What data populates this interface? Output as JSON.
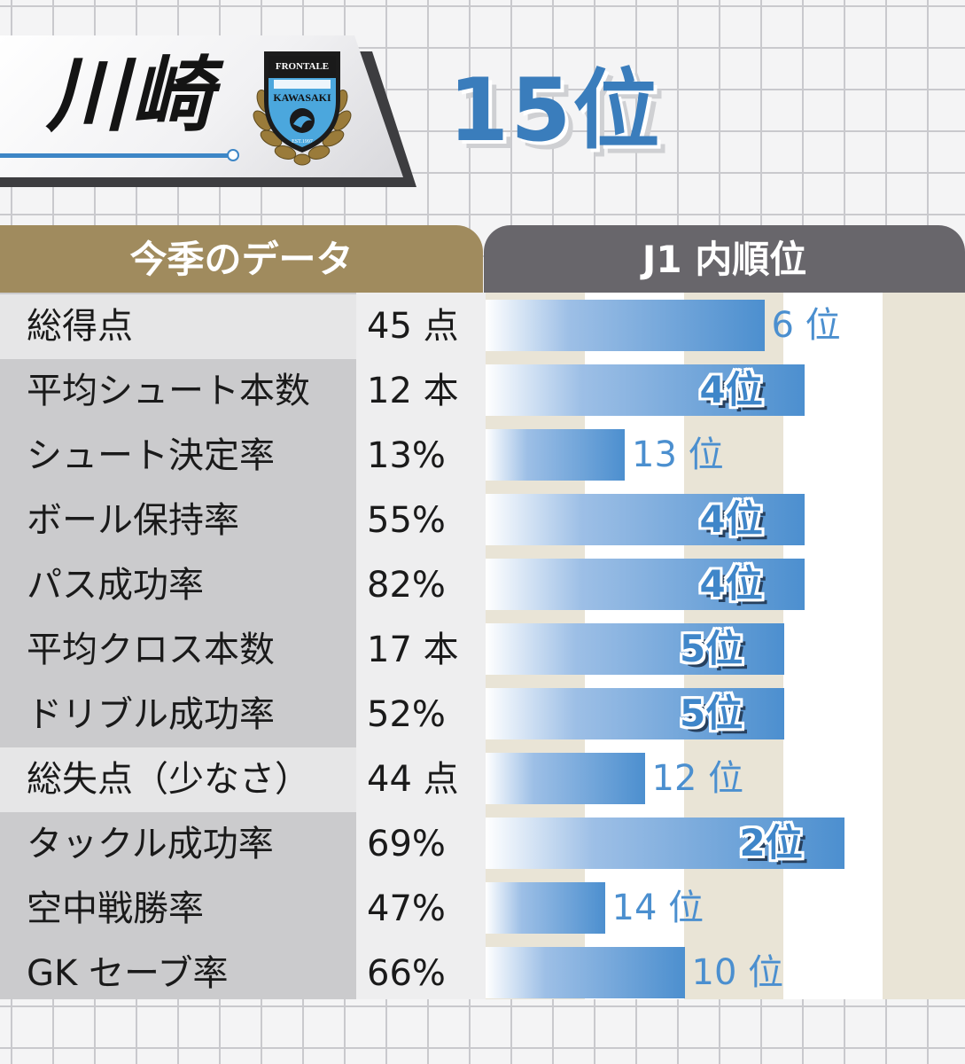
{
  "header": {
    "team_name": "川崎",
    "crest": {
      "top_text": "FRONTALE",
      "main_text": "KAWASAKI",
      "est_text": "EST.1997"
    },
    "overall_rank": "15位"
  },
  "table": {
    "left_header": "今季のデータ",
    "right_header": "J1 内順位"
  },
  "colors": {
    "accent": "#3d86c6",
    "gold": "#a08b5e",
    "dark_gray": "#68666b"
  },
  "chart_data": {
    "type": "bar",
    "orientation": "horizontal",
    "note_scale": "bar length reflects league rank (1位 longest, 18位 shortest)",
    "rows": [
      {
        "label": "総得点",
        "value": "45 点",
        "rank": 6,
        "rank_text": "6 位"
      },
      {
        "label": "平均シュート本数",
        "value": "12 本",
        "rank": 4,
        "rank_text": "4位"
      },
      {
        "label": "シュート決定率",
        "value": "13%",
        "rank": 13,
        "rank_text": "13 位"
      },
      {
        "label": "ボール保持率",
        "value": "55%",
        "rank": 4,
        "rank_text": "4位"
      },
      {
        "label": "パス成功率",
        "value": "82%",
        "rank": 4,
        "rank_text": "4位"
      },
      {
        "label": "平均クロス本数",
        "value": "17 本",
        "rank": 5,
        "rank_text": "5位"
      },
      {
        "label": "ドリブル成功率",
        "value": "52%",
        "rank": 5,
        "rank_text": "5位"
      },
      {
        "label": "総失点（少なさ）",
        "value": "44 点",
        "rank": 12,
        "rank_text": "12 位"
      },
      {
        "label": "タックル成功率",
        "value": "69%",
        "rank": 2,
        "rank_text": "2位"
      },
      {
        "label": "空中戦勝率",
        "value": "47%",
        "rank": 14,
        "rank_text": "14 位"
      },
      {
        "label": "GK セーブ率",
        "value": "66%",
        "rank": 10,
        "rank_text": "10 位"
      }
    ]
  }
}
